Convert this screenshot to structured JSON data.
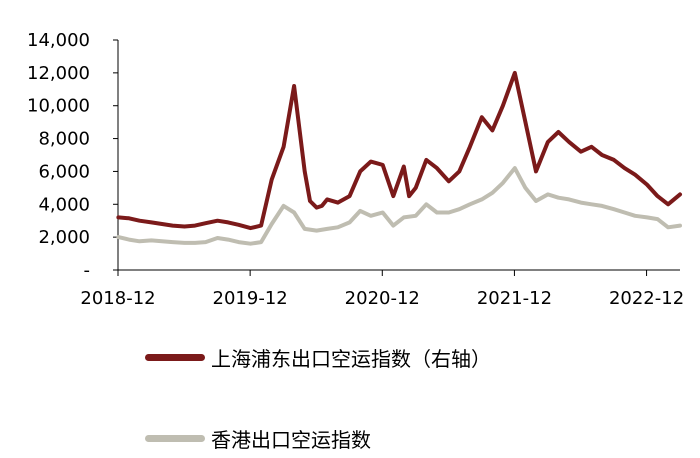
{
  "chart_data": {
    "type": "line",
    "y_axis": {
      "ticks": [
        0,
        2000,
        4000,
        6000,
        8000,
        10000,
        12000,
        14000
      ],
      "tick_labels": [
        "-",
        "2,000",
        "4,000",
        "6,000",
        "8,000",
        "10,000",
        "12,000",
        "14,000"
      ],
      "ylim": [
        0,
        14000
      ]
    },
    "x_axis": {
      "tick_labels": [
        "2018-12",
        "2019-12",
        "2020-12",
        "2021-12",
        "2022-12"
      ],
      "tick_positions": [
        2018.917,
        2019.917,
        2020.917,
        2021.917,
        2022.917
      ],
      "xlim": [
        2018.917,
        2023.17
      ]
    },
    "grid": false,
    "legend_position": "bottom",
    "series": [
      {
        "name": "上海浦东出口空运指数（右轴）",
        "color": "#7B1A1A",
        "x": [
          2018.92,
          2019.0,
          2019.08,
          2019.17,
          2019.25,
          2019.33,
          2019.42,
          2019.5,
          2019.58,
          2019.67,
          2019.75,
          2019.83,
          2019.92,
          2020.0,
          2020.08,
          2020.17,
          2020.25,
          2020.33,
          2020.37,
          2020.42,
          2020.46,
          2020.5,
          2020.58,
          2020.67,
          2020.75,
          2020.83,
          2020.92,
          2021.0,
          2021.08,
          2021.12,
          2021.17,
          2021.25,
          2021.33,
          2021.42,
          2021.5,
          2021.58,
          2021.67,
          2021.75,
          2021.83,
          2021.92,
          2021.96,
          2022.0,
          2022.08,
          2022.17,
          2022.25,
          2022.33,
          2022.42,
          2022.5,
          2022.58,
          2022.67,
          2022.75,
          2022.83,
          2022.92,
          2023.0,
          2023.08,
          2023.17
        ],
        "y": [
          3200,
          3150,
          3000,
          2900,
          2800,
          2700,
          2650,
          2700,
          2850,
          3000,
          2900,
          2750,
          2550,
          2700,
          5500,
          7500,
          11200,
          6000,
          4200,
          3800,
          3900,
          4300,
          4100,
          4500,
          6000,
          6600,
          6400,
          4500,
          6300,
          4500,
          5000,
          6700,
          6200,
          5400,
          6000,
          7500,
          9300,
          8500,
          10000,
          12000,
          10500,
          9000,
          6000,
          7800,
          8400,
          7800,
          7200,
          7500,
          7000,
          6700,
          6200,
          5800,
          5200,
          4500,
          4000,
          4600
        ]
      },
      {
        "name": "香港出口空运指数",
        "color": "#BFBDB1",
        "x": [
          2018.92,
          2019.0,
          2019.08,
          2019.17,
          2019.25,
          2019.33,
          2019.42,
          2019.5,
          2019.58,
          2019.67,
          2019.75,
          2019.83,
          2019.92,
          2020.0,
          2020.08,
          2020.17,
          2020.25,
          2020.33,
          2020.42,
          2020.5,
          2020.58,
          2020.67,
          2020.75,
          2020.83,
          2020.92,
          2021.0,
          2021.08,
          2021.17,
          2021.25,
          2021.33,
          2021.42,
          2021.5,
          2021.58,
          2021.67,
          2021.75,
          2021.83,
          2021.92,
          2022.0,
          2022.08,
          2022.17,
          2022.25,
          2022.33,
          2022.42,
          2022.5,
          2022.58,
          2022.67,
          2022.75,
          2022.83,
          2022.92,
          2023.0,
          2023.08,
          2023.17
        ],
        "y": [
          2000,
          1850,
          1750,
          1800,
          1750,
          1700,
          1650,
          1650,
          1700,
          1950,
          1850,
          1700,
          1600,
          1700,
          2800,
          3900,
          3500,
          2500,
          2400,
          2500,
          2600,
          2900,
          3600,
          3300,
          3500,
          2700,
          3200,
          3300,
          4000,
          3500,
          3500,
          3700,
          4000,
          4300,
          4700,
          5300,
          6200,
          5000,
          4200,
          4600,
          4400,
          4300,
          4100,
          4000,
          3900,
          3700,
          3500,
          3300,
          3200,
          3100,
          2600,
          2700
        ]
      }
    ]
  }
}
